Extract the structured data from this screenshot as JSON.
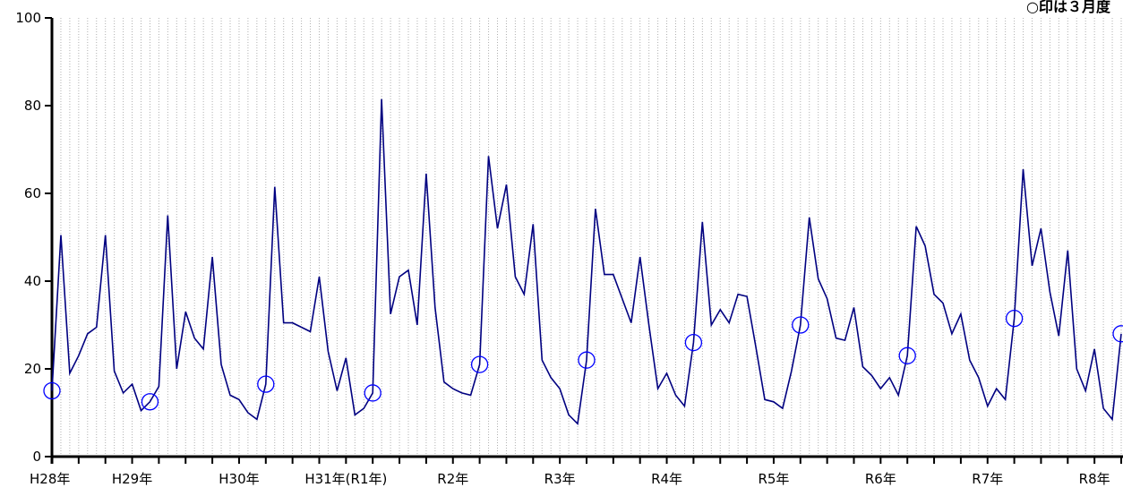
{
  "chart_data": {
    "type": "line",
    "title": "",
    "xlabel": "",
    "ylabel": "",
    "ylim": [
      0,
      100
    ],
    "y_ticks": [
      0,
      20,
      40,
      60,
      80,
      100
    ],
    "grid": "vertical dotted lines at each month",
    "annotation": "○印は３月度",
    "x_ticks": [
      {
        "label": "H28年",
        "month_index": 0
      },
      {
        "label": "H29年",
        "month_index": 9
      },
      {
        "label": "H30年",
        "month_index": 21
      },
      {
        "label": "H31年(R1年)",
        "month_index": 33
      },
      {
        "label": "R2年",
        "month_index": 45
      },
      {
        "label": "R3年",
        "month_index": 57
      },
      {
        "label": "R4年",
        "month_index": 69
      },
      {
        "label": "R5年",
        "month_index": 81
      },
      {
        "label": "R6年",
        "month_index": 93
      },
      {
        "label": "R7年",
        "month_index": 105
      },
      {
        "label": "R8年",
        "month_index": 117
      }
    ],
    "series": [
      {
        "color": "#000080",
        "marker_color": "#0000ff",
        "values": [
          15,
          50.5,
          19,
          23,
          28,
          29.5,
          50.5,
          19.5,
          14.5,
          16.5,
          10.5,
          12.5,
          16,
          55,
          20,
          33,
          27,
          24.5,
          45.5,
          21,
          14,
          13,
          10,
          8.5,
          16.5,
          61.5,
          30.5,
          30.5,
          29.5,
          28.5,
          41,
          24,
          15,
          22.5,
          9.5,
          11,
          14.5,
          81.5,
          32.5,
          41,
          42.5,
          30,
          64.5,
          34,
          17,
          15.5,
          14.5,
          14,
          21,
          68.5,
          52,
          62,
          41,
          37,
          53,
          22,
          18,
          15.5,
          9.5,
          7.5,
          22,
          56.5,
          41.5,
          41.5,
          36,
          30.5,
          45.5,
          30,
          15.5,
          19,
          14,
          11.5,
          26,
          53.5,
          30,
          33.5,
          30.5,
          37,
          36.5,
          25,
          13,
          12.5,
          11,
          19.5,
          30,
          54.5,
          40.5,
          36,
          27,
          26.5,
          34,
          20.5,
          18.5,
          15.5,
          18,
          14,
          23,
          52.5,
          48,
          37,
          35,
          28,
          32.5,
          22,
          18,
          11.5,
          15.5,
          13,
          31.5,
          65.5,
          43.5,
          52,
          37.5,
          27.5,
          47,
          20,
          15,
          24.5,
          11,
          8.5,
          28
        ],
        "circled_indices": [
          0,
          11,
          24,
          36,
          48,
          60,
          72,
          84,
          96,
          108,
          120
        ]
      }
    ]
  }
}
